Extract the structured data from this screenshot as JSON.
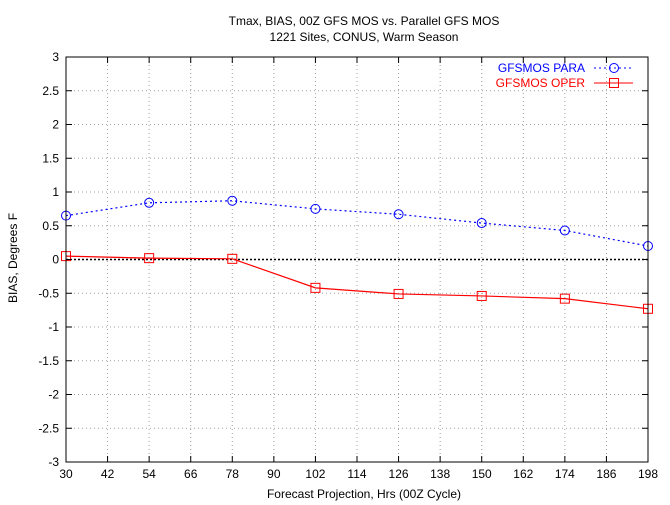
{
  "chart_data": {
    "type": "line",
    "title": "Tmax, BIAS, 00Z GFS MOS vs. Parallel GFS MOS",
    "subtitle": "1221 Sites, CONUS, Warm Season",
    "xlabel": "Forecast Projection, Hrs (00Z Cycle)",
    "ylabel": "BIAS, Degrees F",
    "xlim": [
      30,
      198
    ],
    "ylim": [
      -3,
      3
    ],
    "x_ticks": [
      30,
      42,
      54,
      66,
      78,
      90,
      102,
      114,
      126,
      138,
      150,
      162,
      174,
      186,
      198
    ],
    "y_ticks": [
      -3,
      -2.5,
      -2,
      -1.5,
      -1,
      -0.5,
      0,
      0.5,
      1,
      1.5,
      2,
      2.5,
      3
    ],
    "y_tick_labels": [
      "-3",
      "-2.5",
      "-2",
      "-1.5",
      "-1",
      "-0.5",
      "0",
      "0.5",
      "1",
      "1.5",
      "2",
      "2.5",
      "3"
    ],
    "grid": true,
    "legend_position": "top-right",
    "zero_line": true,
    "x": [
      30,
      54,
      78,
      102,
      126,
      150,
      174,
      198
    ],
    "series": [
      {
        "name": "GFSMOS PARA",
        "color": "#0000ff",
        "marker": "circle",
        "line_style": "dotted",
        "values": [
          0.65,
          0.84,
          0.87,
          0.75,
          0.67,
          0.54,
          0.43,
          0.2
        ]
      },
      {
        "name": "GFSMOS OPER",
        "color": "#ff0000",
        "marker": "square",
        "line_style": "solid",
        "values": [
          0.05,
          0.02,
          0.01,
          -0.42,
          -0.51,
          -0.54,
          -0.58,
          -0.73
        ]
      }
    ]
  }
}
